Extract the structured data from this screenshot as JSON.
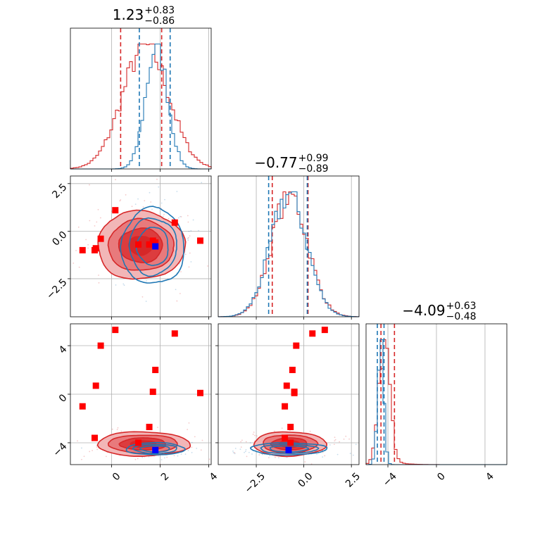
{
  "colors": {
    "red": "#d62728",
    "blue": "#1f77b4",
    "red_fill": [
      "#f2b6b7",
      "#e87a7c",
      "#dc3c3e"
    ],
    "marker_red": "#ff0000",
    "marker_blue": "#0000ff"
  },
  "chart_data": {
    "type": "scatter",
    "subtype": "corner-plot",
    "grid": true,
    "parameters": [
      {
        "title": "1.23^{+0.83}_{-0.86}",
        "median": "1.23",
        "plus": "+0.83",
        "minus": "−0.86",
        "range": [
          -1.7,
          4.1
        ],
        "ticks": [
          0,
          2,
          4
        ],
        "tick_labels": [
          "0",
          "2",
          "4"
        ],
        "quantiles": {
          "red": [
            0.37,
            2.06
          ],
          "blue": [
            1.14,
            2.41
          ]
        },
        "hist_peak": {
          "red": 1.4,
          "blue": 1.85
        },
        "hist_sigma": {
          "red": 0.95,
          "blue": 0.45
        }
      },
      {
        "title": "−0.77^{+0.99}_{-0.89}",
        "median": "−0.77",
        "plus": "+0.99",
        "minus": "−0.89",
        "range": [
          -4.5,
          2.9
        ],
        "ticks": [
          -2.5,
          0.0,
          2.5
        ],
        "tick_labels": [
          "−2.5",
          "0.0",
          "2.5"
        ],
        "quantiles": {
          "red": [
            -1.66,
            0.22
          ],
          "blue": [
            -1.85,
            0.18
          ]
        },
        "hist_peak": {
          "red": -0.75,
          "blue": -0.8
        },
        "hist_sigma": {
          "red": 0.95,
          "blue": 0.95
        }
      },
      {
        "title": "−4.09^{+0.63}_{-0.48}",
        "median": "−4.09",
        "plus": "+0.63",
        "minus": "−0.48",
        "range": [
          -5.8,
          5.8
        ],
        "ticks": [
          -4,
          0,
          4
        ],
        "tick_labels": [
          "−4",
          "0",
          "4"
        ],
        "quantiles": {
          "red": [
            -4.57,
            -3.46
          ],
          "blue": [
            -4.87,
            -4.32
          ]
        },
        "hist_peak": {
          "red": -4.3,
          "blue": -4.6
        },
        "hist_sigma": {
          "red": 0.45,
          "blue": 0.25
        }
      }
    ],
    "contours": [
      {
        "pair": [
          0,
          1
        ],
        "red": {
          "center": [
            1.2,
            -0.75
          ],
          "sigma": [
            0.9,
            0.9
          ]
        },
        "blue": {
          "center": [
            1.7,
            -0.8
          ],
          "sigma": [
            0.65,
            1.0
          ]
        }
      },
      {
        "pair": [
          0,
          2
        ],
        "red": {
          "center": [
            1.3,
            -4.1
          ],
          "sigma": [
            0.95,
            0.5
          ]
        },
        "blue": {
          "center": [
            1.8,
            -4.5
          ],
          "sigma": [
            0.6,
            0.25
          ]
        }
      },
      {
        "pair": [
          1,
          2
        ],
        "red": {
          "center": [
            -0.75,
            -4.1
          ],
          "sigma": [
            0.95,
            0.5
          ]
        },
        "blue": {
          "center": [
            -0.8,
            -4.5
          ],
          "sigma": [
            1.0,
            0.25
          ]
        }
      }
    ],
    "red_markers": [
      [
        -1.2,
        -1.0,
        -1.0
      ],
      [
        -0.7,
        -1.0,
        -3.6
      ],
      [
        -0.65,
        -0.9,
        0.7
      ],
      [
        -0.45,
        -0.4,
        4.0
      ],
      [
        0.15,
        1.1,
        5.3
      ],
      [
        1.1,
        -0.7,
        -4.0
      ],
      [
        1.55,
        -0.7,
        -2.7
      ],
      [
        2.6,
        0.45,
        5.0
      ],
      [
        3.65,
        -0.5,
        0.1
      ],
      [
        1.8,
        -0.6,
        2.0
      ],
      [
        1.7,
        -0.5,
        0.2
      ]
    ],
    "blue_marker": [
      1.8,
      -0.8,
      -4.6
    ]
  }
}
